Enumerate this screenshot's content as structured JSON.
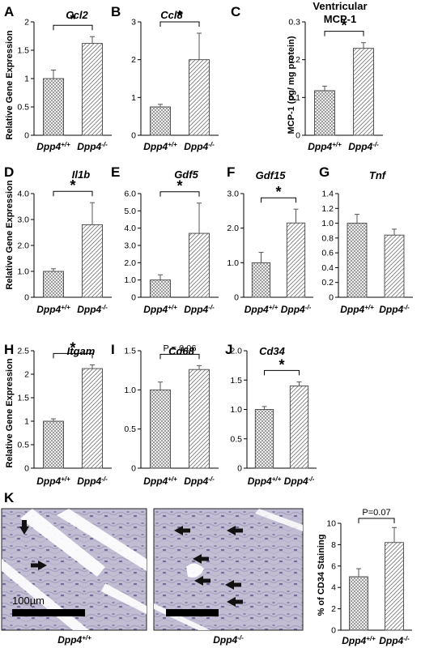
{
  "figure": {
    "y_label_relative": "Relative Gene Expression",
    "mcp_y_label": "MCP-1  (pg/ mg protein)",
    "k_y_label": "% of CD34 Staining",
    "scale_bar_label": "100µm",
    "micrograph_captions": [
      {
        "base": "Dpp4",
        "sup": "+/+"
      },
      {
        "base": "Dpp4",
        "sup": "-/-"
      }
    ]
  },
  "chart_data": [
    {
      "panel": "A",
      "type": "bar",
      "title": "Ccl2",
      "categories": [
        {
          "base": "Dpp4",
          "sup": "+/+"
        },
        {
          "base": "Dpp4",
          "sup": "-/-"
        }
      ],
      "values": [
        1.0,
        1.62
      ],
      "errors": [
        0.15,
        0.12
      ],
      "ylim": [
        0,
        2
      ],
      "yticks": [
        "0",
        "0.5",
        "1",
        "1.5",
        "2"
      ],
      "sig": {
        "label": "*"
      }
    },
    {
      "panel": "B",
      "type": "bar",
      "title": "Ccl8",
      "categories": [
        {
          "base": "Dpp4",
          "sup": "+/+"
        },
        {
          "base": "Dpp4",
          "sup": "-/-"
        }
      ],
      "values": [
        0.75,
        2.0
      ],
      "errors": [
        0.07,
        0.7
      ],
      "ylim": [
        0,
        3
      ],
      "yticks": [
        "0",
        "1",
        "2",
        "3"
      ],
      "sig": {
        "label": "*"
      }
    },
    {
      "panel": "C",
      "type": "bar",
      "title": "Ventricular MCP-1",
      "categories": [
        {
          "base": "Dpp4",
          "sup": "+/+"
        },
        {
          "base": "Dpp4",
          "sup": "-/-"
        }
      ],
      "values": [
        0.118,
        0.23
      ],
      "errors": [
        0.012,
        0.015
      ],
      "ylim": [
        0,
        0.3
      ],
      "yticks": [
        "0",
        "0.1",
        "0.2",
        "0.3"
      ],
      "sig": {
        "label": "*"
      }
    },
    {
      "panel": "D",
      "type": "bar",
      "title": "Il1b",
      "categories": [
        {
          "base": "Dpp4",
          "sup": "+/+"
        },
        {
          "base": "Dpp4",
          "sup": "-/-"
        }
      ],
      "values": [
        1.0,
        2.8
      ],
      "errors": [
        0.1,
        0.85
      ],
      "ylim": [
        0,
        4
      ],
      "yticks": [
        "0",
        "1.0",
        "2.0",
        "3.0",
        "4.0"
      ],
      "sig": {
        "label": "*"
      }
    },
    {
      "panel": "E",
      "type": "bar",
      "title": "Gdf5",
      "categories": [
        {
          "base": "Dpp4",
          "sup": "+/+"
        },
        {
          "base": "Dpp4",
          "sup": "-/-"
        }
      ],
      "values": [
        1.0,
        3.7
      ],
      "errors": [
        0.3,
        1.75
      ],
      "ylim": [
        0,
        6
      ],
      "yticks": [
        "0",
        "1.0",
        "2.0",
        "3.0",
        "4.0",
        "5.0",
        "6.0"
      ],
      "sig": {
        "label": "*"
      }
    },
    {
      "panel": "F",
      "type": "bar",
      "title": "Gdf15",
      "categories": [
        {
          "base": "Dpp4",
          "sup": "+/+"
        },
        {
          "base": "Dpp4",
          "sup": "-/-"
        }
      ],
      "values": [
        1.0,
        2.15
      ],
      "errors": [
        0.3,
        0.4
      ],
      "ylim": [
        0,
        3
      ],
      "yticks": [
        "0",
        "1.0",
        "2.0",
        "3.0"
      ],
      "sig": {
        "label": "*"
      }
    },
    {
      "panel": "G",
      "type": "bar",
      "title": "Tnf",
      "categories": [
        {
          "base": "Dpp4",
          "sup": "+/+"
        },
        {
          "base": "Dpp4",
          "sup": "-/-"
        }
      ],
      "values": [
        1.0,
        0.84
      ],
      "errors": [
        0.12,
        0.08
      ],
      "ylim": [
        0,
        1.4
      ],
      "yticks": [
        "0",
        "0.2",
        "0.4",
        "0.6",
        "0.8",
        "1.0",
        "1.2",
        "1.4"
      ],
      "sig": null
    },
    {
      "panel": "H",
      "type": "bar",
      "title": "Itgam",
      "categories": [
        {
          "base": "Dpp4",
          "sup": "+/+"
        },
        {
          "base": "Dpp4",
          "sup": "-/-"
        }
      ],
      "values": [
        1.0,
        2.12
      ],
      "errors": [
        0.05,
        0.08
      ],
      "ylim": [
        0,
        2.5
      ],
      "yticks": [
        "0",
        "0.5",
        "1",
        "1.5",
        "2",
        "2.5"
      ],
      "sig": {
        "label": "*"
      }
    },
    {
      "panel": "I",
      "type": "bar",
      "title": "Cd68",
      "categories": [
        {
          "base": "Dpp4",
          "sup": "+/+"
        },
        {
          "base": "Dpp4",
          "sup": "-/-"
        }
      ],
      "values": [
        1.0,
        1.26
      ],
      "errors": [
        0.1,
        0.05
      ],
      "ylim": [
        0,
        1.5
      ],
      "yticks": [
        "0",
        "0.5",
        "1.0",
        "1.5"
      ],
      "sig": {
        "label": "P = 0.06"
      }
    },
    {
      "panel": "J",
      "type": "bar",
      "title": "Cd34",
      "categories": [
        {
          "base": "Dpp4",
          "sup": "+/+"
        },
        {
          "base": "Dpp4",
          "sup": "-/-"
        }
      ],
      "values": [
        1.0,
        1.4
      ],
      "errors": [
        0.05,
        0.07
      ],
      "ylim": [
        0,
        2.0
      ],
      "yticks": [
        "0",
        "0.5",
        "1.0",
        "1.5",
        "2.0"
      ],
      "sig": {
        "label": "*"
      }
    },
    {
      "panel": "K",
      "type": "bar",
      "title": "",
      "categories": [
        {
          "base": "Dpp4",
          "sup": "+/+"
        },
        {
          "base": "Dpp4",
          "sup": "-/-"
        }
      ],
      "values": [
        5.0,
        8.2
      ],
      "errors": [
        0.75,
        1.4
      ],
      "ylim": [
        0,
        10
      ],
      "yticks": [
        "0",
        "2",
        "4",
        "6",
        "8",
        "10"
      ],
      "sig": {
        "label": "P=0.07"
      }
    }
  ]
}
